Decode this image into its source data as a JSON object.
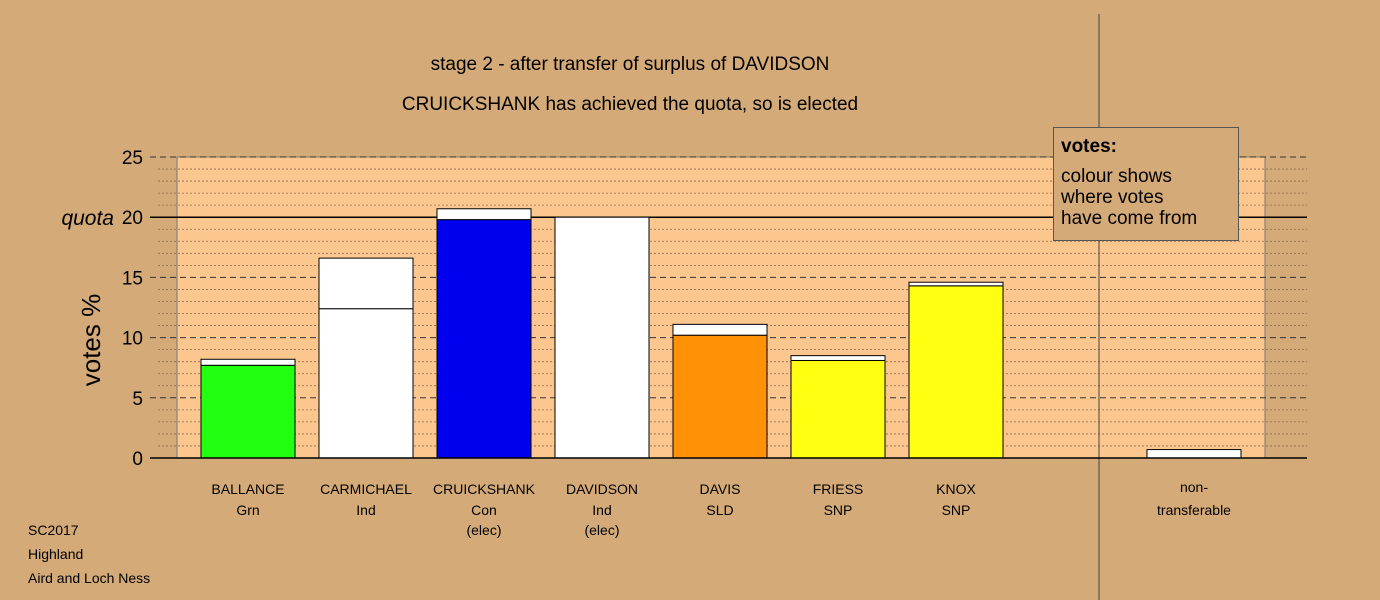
{
  "title": "stage 2 - after transfer of surplus of DAVIDSON",
  "subtitle": "CRUICKSHANK has achieved the quota, so is elected",
  "legend": {
    "title": "votes:",
    "lines": [
      "colour shows",
      "where votes",
      "have come from"
    ]
  },
  "footer": [
    "SC2017",
    "Highland",
    "Aird and Loch Ness"
  ],
  "chart_data": {
    "type": "bar",
    "ylabel": "votes %",
    "ylim": [
      0,
      25
    ],
    "yticks": [
      "0",
      "5",
      "10",
      "15",
      "20",
      "25"
    ],
    "quota": {
      "label": "quota",
      "value": 20
    },
    "grid": true,
    "stacked": true,
    "candidates": [
      {
        "name": "BALLANCE",
        "party": "Grn",
        "note": "",
        "segments": [
          {
            "value": 7.7,
            "color": "#22ff11"
          },
          {
            "value": 0.5,
            "color": "#ffffff"
          }
        ]
      },
      {
        "name": "CARMICHAEL",
        "party": "Ind",
        "note": "",
        "segments": [
          {
            "value": 12.4,
            "color": "#ffffff"
          },
          {
            "value": 4.2,
            "color": "#ffffff"
          }
        ]
      },
      {
        "name": "CRUICKSHANK",
        "party": "Con",
        "note": "(elec)",
        "segments": [
          {
            "value": 19.8,
            "color": "#0000ee"
          },
          {
            "value": 0.9,
            "color": "#ffffff"
          }
        ]
      },
      {
        "name": "DAVIDSON",
        "party": "Ind",
        "note": "(elec)",
        "segments": [
          {
            "value": 20.0,
            "color": "#ffffff"
          }
        ]
      },
      {
        "name": "DAVIS",
        "party": "SLD",
        "note": "",
        "segments": [
          {
            "value": 10.2,
            "color": "#ff9106"
          },
          {
            "value": 0.9,
            "color": "#ffffff"
          }
        ]
      },
      {
        "name": "FRIESS",
        "party": "SNP",
        "note": "",
        "segments": [
          {
            "value": 8.1,
            "color": "#ffff11"
          },
          {
            "value": 0.4,
            "color": "#ffffff"
          }
        ]
      },
      {
        "name": "KNOX",
        "party": "SNP",
        "note": "",
        "segments": [
          {
            "value": 14.3,
            "color": "#ffff11"
          },
          {
            "value": 0.3,
            "color": "#ffffff"
          }
        ]
      }
    ],
    "nontransferable": {
      "label_lines": [
        "non-",
        "transferable"
      ],
      "value": 0.7,
      "color": "#ffffff"
    }
  }
}
